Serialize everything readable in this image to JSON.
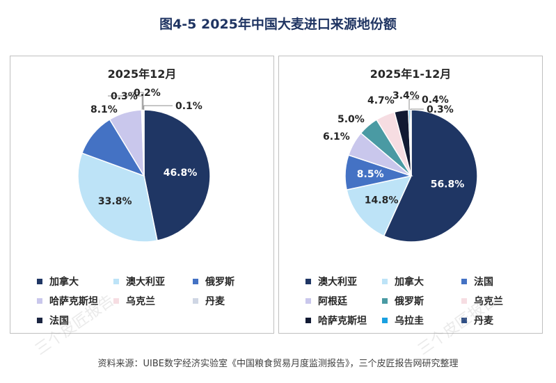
{
  "title": "图4-5 2025年中国大麦进口来源地份额",
  "source": "资料来源：UIBE数字经济实验室《中国粮食贸易月度监测报告》，三个皮匠报告网研究整理",
  "watermark": "三个皮匠报告",
  "chart_data": [
    {
      "type": "pie",
      "title": "2025年12月",
      "slices": [
        {
          "name": "加拿大",
          "value": 46.8,
          "label": "46.8%",
          "color": "#1f3664"
        },
        {
          "name": "澳大利亚",
          "value": 33.8,
          "label": "33.8%",
          "color": "#bde3f7"
        },
        {
          "name": "俄罗斯",
          "value": 10.7,
          "label": "",
          "color": "#4472c4"
        },
        {
          "name": "哈萨克斯坦",
          "value": 8.1,
          "label": "8.1%",
          "color": "#c9c7ec"
        },
        {
          "name": "乌克兰",
          "value": 0.3,
          "label": "0.3%",
          "color": "#f6dde2"
        },
        {
          "name": "丹麦",
          "value": 0.2,
          "label": "0.2%",
          "color": "#cfd6e4"
        },
        {
          "name": "法国",
          "value": 0.1,
          "label": "0.1%",
          "color": "#1b2541"
        }
      ],
      "legend": [
        "加拿大",
        "澳大利亚",
        "俄罗斯",
        "哈萨克斯坦",
        "乌克兰",
        "丹麦",
        "法国"
      ]
    },
    {
      "type": "pie",
      "title": "2025年1-12月",
      "slices": [
        {
          "name": "澳大利亚",
          "value": 56.8,
          "label": "56.8%",
          "color": "#1f3664"
        },
        {
          "name": "加拿大",
          "value": 14.8,
          "label": "14.8%",
          "color": "#bde3f7"
        },
        {
          "name": "法国",
          "value": 8.5,
          "label": "8.5%",
          "color": "#4472c4"
        },
        {
          "name": "阿根廷",
          "value": 6.1,
          "label": "6.1%",
          "color": "#c9c7ec"
        },
        {
          "name": "俄罗斯",
          "value": 5.0,
          "label": "5.0%",
          "color": "#4a9aa3"
        },
        {
          "name": "乌克兰",
          "value": 4.7,
          "label": "4.7%",
          "color": "#f6dde2"
        },
        {
          "name": "哈萨克斯坦",
          "value": 3.4,
          "label": "3.4%",
          "color": "#111a33"
        },
        {
          "name": "乌拉圭",
          "value": 0.4,
          "label": "0.4%",
          "color": "#1aa0e0"
        },
        {
          "name": "丹麦",
          "value": 0.3,
          "label": "0.3%",
          "color": "#2e4e85"
        }
      ],
      "legend": [
        "澳大利亚",
        "加拿大",
        "法国",
        "阿根廷",
        "俄罗斯",
        "乌克兰",
        "哈萨克斯坦",
        "乌拉圭",
        "丹麦"
      ]
    }
  ]
}
